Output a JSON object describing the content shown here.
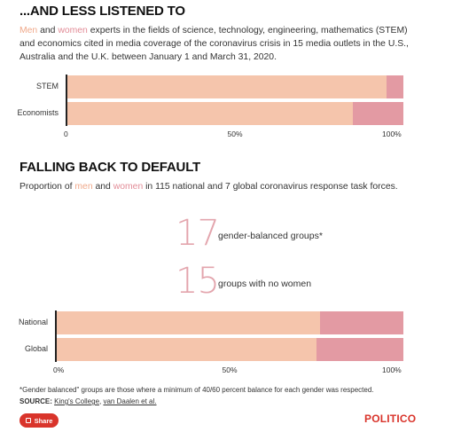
{
  "chart1": {
    "title": "...AND LESS LISTENED TO",
    "desc": {
      "men": "Men",
      "and": " and ",
      "women": "women",
      "rest": " experts in the fields of science, technology, engineering, mathematics (STEM) and economics cited in media coverage of the coronavirus crisis in 15 media outlets in the U.S., Australia and the U.K. between January 1 and March 31, 2020."
    }
  },
  "chart2": {
    "title": "FALLING BACK TO DEFAULT",
    "desc": {
      "prefix": "Proportion of ",
      "men": "men",
      "and": " and ",
      "women": "women",
      "rest": " in 115 national and 7 global coronavirus response task forces."
    },
    "stats": [
      {
        "number": "17",
        "label": "gender-balanced groups*"
      },
      {
        "number": "15",
        "label": "groups with no women"
      }
    ]
  },
  "chart_data": [
    {
      "type": "bar",
      "orientation": "horizontal",
      "stacked": true,
      "title": "...AND LESS LISTENED TO",
      "categories": [
        "STEM",
        "Economists"
      ],
      "series": [
        {
          "name": "Men",
          "values": [
            95,
            85
          ]
        },
        {
          "name": "Women",
          "values": [
            5,
            15
          ]
        }
      ],
      "xlim": [
        0,
        100
      ],
      "ticks": [
        "0",
        "50%",
        "100%"
      ],
      "colors": {
        "Men": "#f5c5ac",
        "Women": "#e39aa3"
      }
    },
    {
      "type": "bar",
      "orientation": "horizontal",
      "stacked": true,
      "title": "FALLING BACK TO DEFAULT",
      "categories": [
        "National",
        "Global"
      ],
      "series": [
        {
          "name": "Men",
          "values": [
            76,
            75
          ]
        },
        {
          "name": "Women",
          "values": [
            24,
            25
          ]
        }
      ],
      "xlim": [
        0,
        100
      ],
      "ticks": [
        "0%",
        "50%",
        "100%"
      ],
      "colors": {
        "Men": "#f5c5ac",
        "Women": "#e39aa3"
      }
    }
  ],
  "footnote": "*Gender balanced\" groups are those where a minimum of 40/60 percent balance for each gender was respected.",
  "source": {
    "label": "SOURCE:",
    "link1": "King's College",
    "sep": ", ",
    "link2": "van Daalen et al."
  },
  "share_label": "Share",
  "logo": "POLITICO"
}
